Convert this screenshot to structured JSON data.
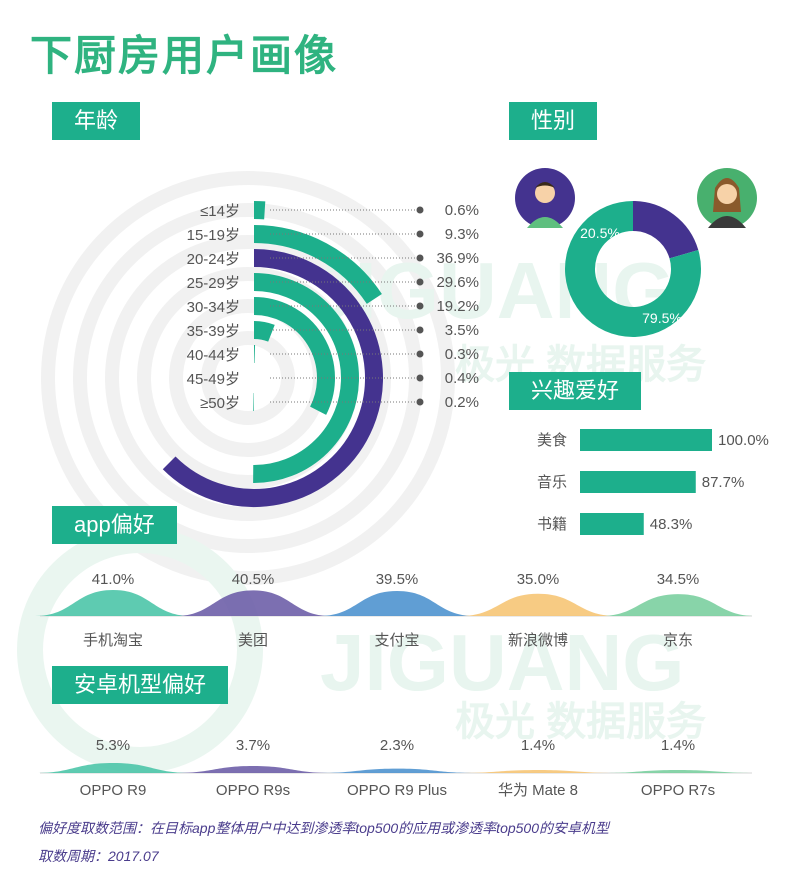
{
  "title": "下厨房用户画像",
  "watermark": {
    "brand_en": "JIGUANG",
    "brand_cn": "极光 数据服务"
  },
  "sections": {
    "age": "年龄",
    "gender": "性别",
    "hobby": "兴趣爱好",
    "app": "app偏好",
    "phone": "安卓机型偏好"
  },
  "chart_data": [
    {
      "id": "age",
      "type": "bar",
      "shape": "radial",
      "categories": [
        "≤14岁",
        "15-19岁",
        "20-24岁",
        "25-29岁",
        "30-34岁",
        "35-39岁",
        "40-44岁",
        "45-49岁",
        "≥50岁"
      ],
      "values": [
        0.6,
        9.3,
        36.9,
        29.6,
        19.2,
        3.5,
        0.3,
        0.4,
        0.2
      ],
      "labels": [
        "0.6%",
        "9.3%",
        "36.9%",
        "29.6%",
        "19.2%",
        "3.5%",
        "0.3%",
        "0.4%",
        "0.2%"
      ],
      "colors": [
        "#1daf8c",
        "#1daf8c",
        "#44338f",
        "#1daf8c",
        "#1daf8c",
        "#1daf8c",
        "#1daf8c",
        "#1daf8c",
        "#1daf8c"
      ]
    },
    {
      "id": "gender",
      "type": "pie",
      "shape": "donut",
      "categories": [
        "男",
        "女"
      ],
      "values": [
        20.5,
        79.5
      ],
      "labels": [
        "20.5%",
        "79.5%"
      ],
      "colors": [
        "#44338f",
        "#1daf8c"
      ]
    },
    {
      "id": "hobby",
      "type": "bar",
      "orientation": "horizontal",
      "categories": [
        "美食",
        "音乐",
        "书籍"
      ],
      "values": [
        100.0,
        87.7,
        48.3
      ],
      "labels": [
        "100.0%",
        "87.7%",
        "48.3%"
      ],
      "color": "#1daf8c"
    },
    {
      "id": "app",
      "type": "area",
      "categories": [
        "手机淘宝",
        "美团",
        "支付宝",
        "新浪微博",
        "京东"
      ],
      "values": [
        41.0,
        40.5,
        39.5,
        35.0,
        34.5
      ],
      "labels": [
        "41.0%",
        "40.5%",
        "39.5%",
        "35.0%",
        "34.5%"
      ],
      "colors": [
        "#4cc5a8",
        "#6e5fa8",
        "#4f93cf",
        "#f6c575",
        "#7bcfa0"
      ]
    },
    {
      "id": "phone",
      "type": "area",
      "categories": [
        "OPPO R9",
        "OPPO R9s",
        "OPPO R9 Plus",
        "华为 Mate 8",
        "OPPO R7s"
      ],
      "values": [
        5.3,
        3.7,
        2.3,
        1.4,
        1.4
      ],
      "labels": [
        "5.3%",
        "3.7%",
        "2.3%",
        "1.4%",
        "1.4%"
      ],
      "colors": [
        "#4cc5a8",
        "#6e5fa8",
        "#4f93cf",
        "#f6c575",
        "#7bcfa0"
      ]
    }
  ],
  "footnotes": {
    "scope": "偏好度取数范围：在目标app整体用户中达到渗透率top500的应用或渗透率top500的安卓机型",
    "period": "取数周期：2017.07"
  }
}
